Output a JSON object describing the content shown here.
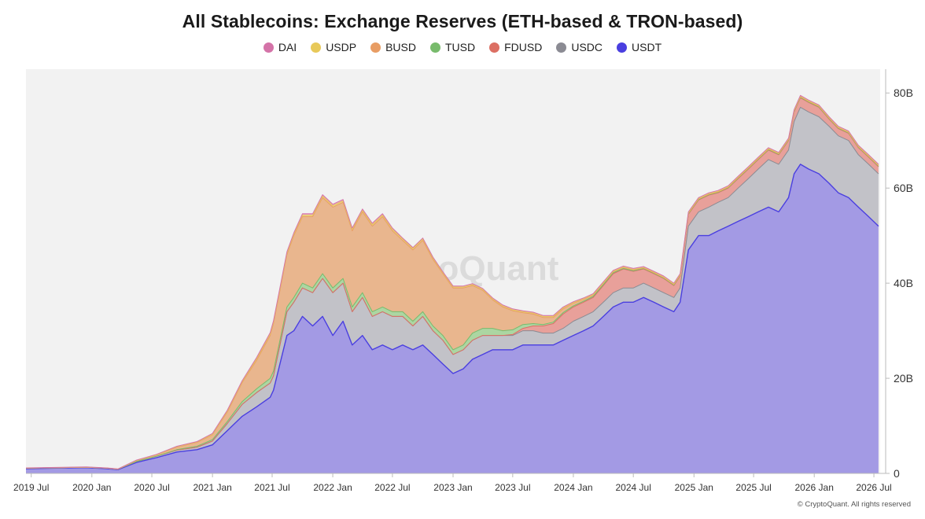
{
  "chart_data": {
    "type": "area",
    "stacked": true,
    "title": "All Stablecoins: Exchange Reserves (ETH-based & TRON-based)",
    "watermark": "CryptoQuant",
    "credit": "© CryptoQuant. All rights reserved",
    "ylim": [
      0,
      85
    ],
    "y_unit": "B",
    "yticks": [
      {
        "value": 0,
        "label": "0"
      },
      {
        "value": 20,
        "label": "20B"
      },
      {
        "value": 40,
        "label": "40B"
      },
      {
        "value": 60,
        "label": "60B"
      },
      {
        "value": 80,
        "label": "80B"
      }
    ],
    "xlim": [
      "2019-06-15",
      "2026-07-20"
    ],
    "xticks": [
      {
        "date": "2019-07-01",
        "label": "2019 Jul"
      },
      {
        "date": "2020-01-01",
        "label": "2020 Jan"
      },
      {
        "date": "2020-07-01",
        "label": "2020 Jul"
      },
      {
        "date": "2021-01-01",
        "label": "2021 Jan"
      },
      {
        "date": "2021-07-01",
        "label": "2021 Jul"
      },
      {
        "date": "2022-01-01",
        "label": "2022 Jan"
      },
      {
        "date": "2022-07-01",
        "label": "2022 Jul"
      },
      {
        "date": "2023-01-01",
        "label": "2023 Jan"
      },
      {
        "date": "2023-07-01",
        "label": "2023 Jul"
      },
      {
        "date": "2024-01-01",
        "label": "2024 Jan"
      },
      {
        "date": "2024-07-01",
        "label": "2024 Jul"
      },
      {
        "date": "2025-01-01",
        "label": "2025 Jan"
      },
      {
        "date": "2025-07-01",
        "label": "2025 Jul"
      },
      {
        "date": "2026-01-01",
        "label": "2026 Jan"
      },
      {
        "date": "2026-07-01",
        "label": "2026 Jul"
      }
    ],
    "legend_position": "top-center",
    "series": [
      {
        "name": "DAI",
        "color": "#d473a8"
      },
      {
        "name": "USDP",
        "color": "#e8c95a"
      },
      {
        "name": "BUSD",
        "color": "#e89d64"
      },
      {
        "name": "TUSD",
        "color": "#78bb6c"
      },
      {
        "name": "FDUSD",
        "color": "#dc6f63"
      },
      {
        "name": "USDC",
        "color": "#8b8b93"
      },
      {
        "name": "USDT",
        "color": "#4a3fe0"
      }
    ],
    "dates": [
      "2019-06-15",
      "2019-09-15",
      "2019-12-15",
      "2020-02-15",
      "2020-03-20",
      "2020-05-15",
      "2020-07-15",
      "2020-09-15",
      "2020-11-15",
      "2021-01-01",
      "2021-02-15",
      "2021-04-01",
      "2021-05-15",
      "2021-06-25",
      "2021-07-05",
      "2021-08-15",
      "2021-09-05",
      "2021-10-01",
      "2021-11-01",
      "2021-12-01",
      "2022-01-01",
      "2022-02-01",
      "2022-03-01",
      "2022-04-01",
      "2022-05-01",
      "2022-06-01",
      "2022-07-01",
      "2022-08-01",
      "2022-09-01",
      "2022-10-01",
      "2022-11-01",
      "2022-12-01",
      "2023-01-01",
      "2023-02-01",
      "2023-03-01",
      "2023-04-01",
      "2023-05-01",
      "2023-06-01",
      "2023-07-01",
      "2023-08-01",
      "2023-09-01",
      "2023-10-01",
      "2023-11-01",
      "2023-12-01",
      "2024-01-01",
      "2024-02-01",
      "2024-03-01",
      "2024-04-01",
      "2024-05-01",
      "2024-06-01",
      "2024-07-01",
      "2024-08-01",
      "2024-09-01",
      "2024-10-01",
      "2024-11-01",
      "2024-11-20",
      "2024-12-15",
      "2025-01-15",
      "2025-02-15",
      "2025-03-15",
      "2025-04-15",
      "2025-05-15",
      "2025-06-15",
      "2025-07-15",
      "2025-08-15",
      "2025-09-15",
      "2025-10-15",
      "2025-11-01",
      "2025-11-20",
      "2025-12-15",
      "2026-01-15",
      "2026-02-15",
      "2026-03-15",
      "2026-04-15",
      "2026-05-15",
      "2026-06-15",
      "2026-07-15"
    ],
    "stack_values": {
      "USDT": [
        1,
        1.1,
        1.2,
        1,
        0.8,
        2.3,
        3.3,
        4.5,
        5,
        6,
        9,
        12,
        14,
        16,
        17.5,
        29,
        30,
        33,
        31,
        33,
        29,
        32,
        27,
        29,
        26,
        27,
        26,
        27,
        26,
        27,
        25,
        23,
        21,
        22,
        24,
        25,
        26,
        26,
        26,
        27,
        27,
        27,
        27,
        28,
        29,
        30,
        31,
        33,
        35,
        36,
        36,
        37,
        36,
        35,
        34,
        36,
        47,
        50,
        50,
        51,
        52,
        53,
        54,
        55,
        56,
        55,
        58,
        63,
        65,
        64,
        63,
        61,
        59,
        58,
        56,
        54,
        52
      ],
      "USDC": [
        0.1,
        0.1,
        0.1,
        0.1,
        0.1,
        0.2,
        0.3,
        0.4,
        0.5,
        0.8,
        1.5,
        2.5,
        3,
        3,
        3,
        5,
        6,
        6,
        7,
        8,
        9,
        8,
        7,
        8,
        7,
        7,
        7,
        6,
        5,
        6,
        5,
        5,
        4,
        4,
        4,
        4,
        3,
        3,
        3,
        3,
        3,
        2.5,
        2.5,
        2.5,
        3,
        3,
        3,
        3,
        3,
        3,
        3,
        3,
        3,
        3,
        3,
        3,
        5,
        5,
        6,
        6,
        6,
        7,
        8,
        9,
        10,
        10,
        10,
        11,
        12,
        12,
        12,
        12,
        12,
        12,
        11,
        11,
        11
      ],
      "FDUSD": [
        0,
        0,
        0,
        0,
        0,
        0,
        0,
        0,
        0,
        0,
        0,
        0,
        0,
        0,
        0,
        0,
        0,
        0,
        0,
        0,
        0,
        0,
        0,
        0,
        0,
        0,
        0,
        0,
        0,
        0,
        0,
        0,
        0,
        0,
        0,
        0,
        0,
        0,
        0.2,
        0.5,
        1,
        1.5,
        2,
        3,
        3,
        3,
        3,
        3.5,
        4,
        4,
        3.5,
        3,
        3,
        3,
        2.5,
        2.5,
        2.5,
        2.5,
        2.5,
        2,
        2,
        2,
        2,
        2,
        2,
        2,
        2,
        2,
        2,
        2,
        2,
        1.5,
        1.5,
        1.5,
        1.5,
        1.5,
        1.5
      ],
      "TUSD": [
        0,
        0,
        0,
        0,
        0,
        0,
        0,
        0.1,
        0.2,
        0.3,
        0.4,
        0.6,
        0.8,
        1,
        1,
        1,
        1,
        1,
        1,
        1,
        1,
        1,
        1,
        1,
        1,
        1,
        1,
        1,
        1,
        1,
        1,
        1,
        1,
        1,
        1.5,
        1.5,
        1.5,
        1,
        1,
        0.8,
        0.5,
        0.3,
        0.3,
        0.3,
        0.2,
        0.2,
        0.2,
        0.2,
        0.2,
        0.1,
        0.1,
        0.1,
        0.1,
        0.1,
        0.1,
        0.1,
        0.1,
        0.1,
        0.1,
        0.1,
        0.1,
        0.1,
        0.1,
        0.1,
        0.1,
        0.1,
        0.1,
        0.1,
        0.1,
        0.1,
        0.1,
        0.1,
        0.1,
        0.1,
        0.1,
        0.1,
        0.1
      ],
      "BUSD": [
        0,
        0,
        0,
        0,
        0,
        0.2,
        0.3,
        0.5,
        0.8,
        1,
        2,
        4,
        6,
        9,
        10,
        11,
        13,
        14,
        15,
        16,
        17,
        16,
        16,
        17,
        18,
        19,
        17,
        15,
        15,
        15,
        14,
        13,
        13,
        12,
        10,
        8,
        6,
        5,
        4,
        2.5,
        2,
        1.5,
        1,
        0.8,
        0.6,
        0.4,
        0.3,
        0.3,
        0.2,
        0.2,
        0.2,
        0.1,
        0.1,
        0.1,
        0.1,
        0.1,
        0.1,
        0.1,
        0.1,
        0.1,
        0.1,
        0.1,
        0.1,
        0.1,
        0.1,
        0.1,
        0.1,
        0.1,
        0.1,
        0.1,
        0.1,
        0.1,
        0.1,
        0.1,
        0.1,
        0.1,
        0.1
      ],
      "USDP": [
        0,
        0,
        0,
        0,
        0,
        0,
        0,
        0.1,
        0.1,
        0.1,
        0.2,
        0.2,
        0.3,
        0.3,
        0.3,
        0.3,
        0.3,
        0.3,
        0.3,
        0.3,
        0.3,
        0.3,
        0.3,
        0.3,
        0.3,
        0.3,
        0.3,
        0.3,
        0.3,
        0.3,
        0.3,
        0.2,
        0.2,
        0.2,
        0.2,
        0.2,
        0.2,
        0.2,
        0.2,
        0.2,
        0.2,
        0.2,
        0.2,
        0.2,
        0.1,
        0.1,
        0.1,
        0.1,
        0.1,
        0.1,
        0.1,
        0.1,
        0.1,
        0.1,
        0.1,
        0.1,
        0.1,
        0.1,
        0.1,
        0.1,
        0.1,
        0.1,
        0.1,
        0.1,
        0.1,
        0.1,
        0.1,
        0.1,
        0.1,
        0.1,
        0.1,
        0.1,
        0.1,
        0.1,
        0.1,
        0.1,
        0.1
      ],
      "DAI": [
        0.05,
        0.05,
        0.05,
        0.05,
        0.05,
        0.1,
        0.1,
        0.1,
        0.1,
        0.2,
        0.2,
        0.2,
        0.3,
        0.3,
        0.3,
        0.3,
        0.3,
        0.3,
        0.3,
        0.3,
        0.3,
        0.3,
        0.3,
        0.3,
        0.3,
        0.3,
        0.3,
        0.2,
        0.2,
        0.2,
        0.2,
        0.2,
        0.2,
        0.2,
        0.2,
        0.2,
        0.2,
        0.2,
        0.2,
        0.2,
        0.2,
        0.2,
        0.2,
        0.2,
        0.2,
        0.2,
        0.2,
        0.2,
        0.2,
        0.2,
        0.2,
        0.2,
        0.2,
        0.2,
        0.2,
        0.2,
        0.2,
        0.2,
        0.2,
        0.2,
        0.2,
        0.2,
        0.2,
        0.2,
        0.2,
        0.2,
        0.2,
        0.2,
        0.2,
        0.2,
        0.2,
        0.2,
        0.2,
        0.2,
        0.2,
        0.2,
        0.2
      ]
    }
  }
}
